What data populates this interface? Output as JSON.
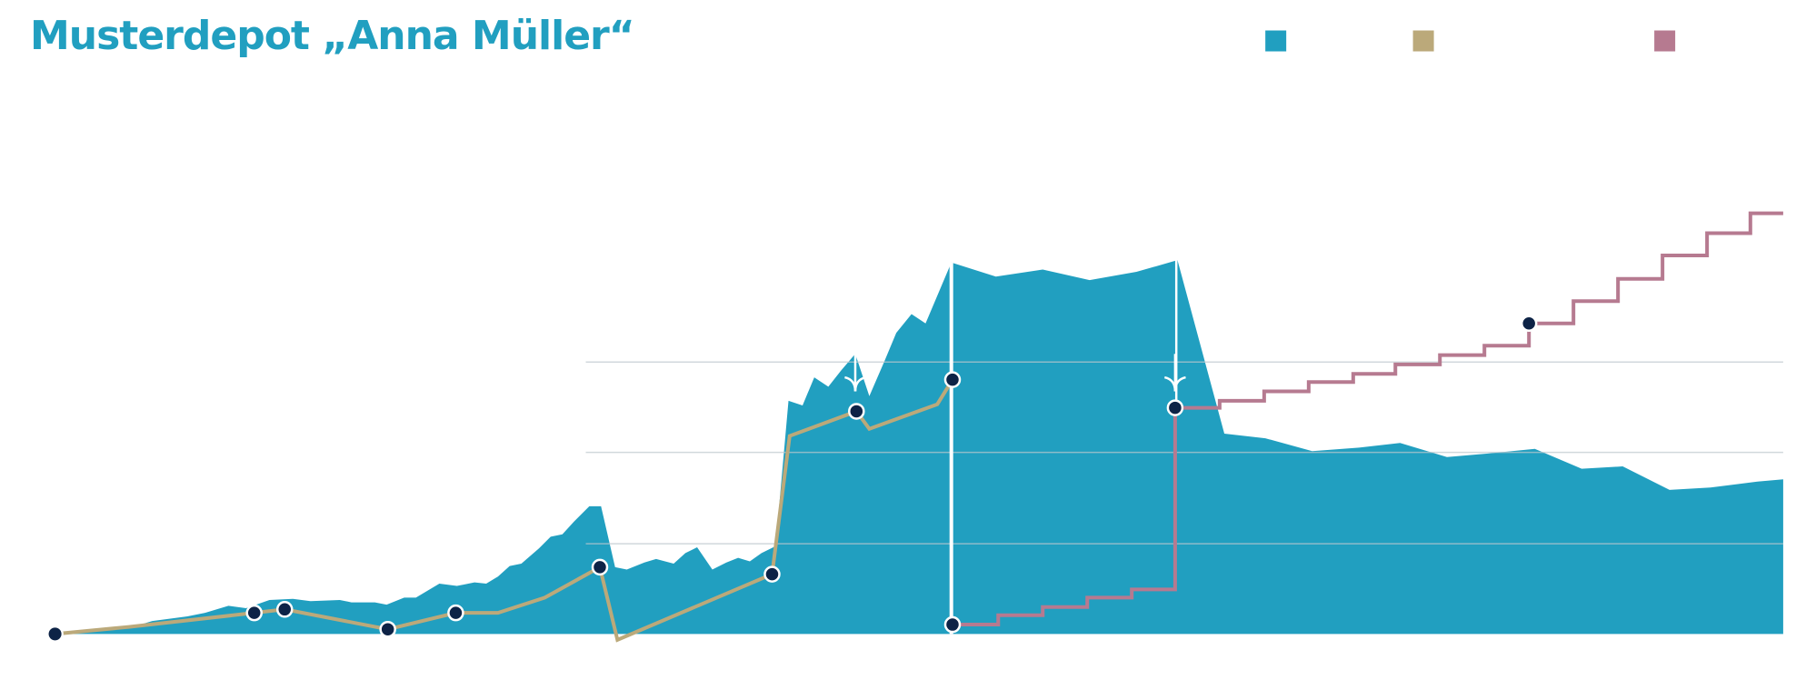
{
  "chart_data": {
    "type": "area",
    "title": "Musterdepot „Anna Müller“",
    "xlim": [
      47,
      1522
    ],
    "ylim": [
      -10,
      388
    ],
    "yticks": [
      77,
      155,
      232
    ],
    "grid": true,
    "series": [
      {
        "type": "area",
        "color": "#219fc0",
        "x": [
          47,
          100,
          120,
          130,
          160,
          175,
          195,
          210,
          230,
          250,
          265,
          290,
          300,
          320,
          330,
          345,
          355,
          375,
          390,
          405,
          415,
          425,
          435,
          445,
          460,
          470,
          480,
          490,
          503,
          513,
          525,
          535,
          550,
          560,
          575,
          585,
          595,
          608,
          620,
          630,
          640,
          650,
          662,
          673,
          685,
          695,
          707,
          718,
          730,
          742,
          755,
          765,
          778,
          790,
          812,
          850,
          890,
          930,
          970,
          1005,
          1045,
          1080,
          1120,
          1160,
          1195,
          1235,
          1270,
          1310,
          1350,
          1385,
          1425,
          1460,
          1500,
          1522
        ],
        "values": [
          0,
          6,
          8,
          11,
          15,
          18,
          24,
          22,
          29,
          30,
          28,
          29,
          27,
          27,
          25,
          31,
          31,
          43,
          41,
          44,
          43,
          49,
          58,
          60,
          73,
          83,
          85,
          96,
          109,
          109,
          57,
          55,
          61,
          64,
          60,
          69,
          74,
          55,
          61,
          65,
          62,
          69,
          75,
          199,
          195,
          219,
          211,
          225,
          239,
          203,
          233,
          257,
          273,
          265,
          317,
          305,
          311,
          302,
          309,
          319,
          171,
          167,
          156,
          159,
          163,
          151,
          154,
          158,
          141,
          143,
          123,
          125,
          130,
          132
        ]
      },
      {
        "type": "line",
        "color": "#bba97a",
        "x": [
          47,
          110,
          217,
          243,
          331,
          389,
          425,
          465,
          512,
          527,
          659,
          674,
          731,
          742,
          800,
          813
        ],
        "values": [
          0,
          6,
          18,
          21,
          4,
          18,
          18,
          31,
          57,
          -5,
          51,
          169,
          190,
          175,
          196,
          217
        ],
        "markers": [
          0,
          2,
          3,
          4,
          5,
          8,
          10,
          12,
          15
        ]
      },
      {
        "type": "step",
        "color": "#b67a90",
        "x": [
          813,
          852,
          890,
          928,
          966,
          1003,
          1041,
          1079,
          1117,
          1155,
          1191,
          1229,
          1267,
          1305,
          1343,
          1381,
          1419,
          1457,
          1494
        ],
        "values": [
          8,
          16,
          23,
          31,
          38,
          193,
          199,
          207,
          215,
          222,
          230,
          238,
          246,
          265,
          284,
          303,
          323,
          342,
          359
        ],
        "markers": [
          0,
          5,
          13
        ]
      }
    ]
  }
}
